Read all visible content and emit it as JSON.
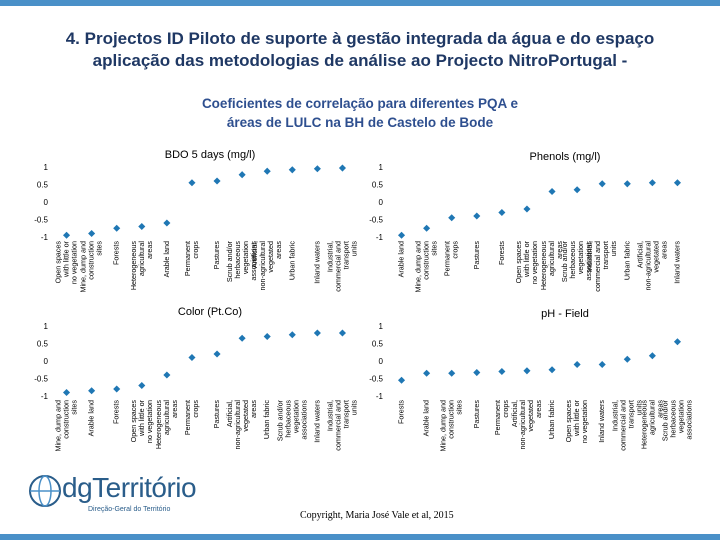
{
  "header": {
    "title_line1": "4. Projectos ID Piloto de suporte à gestão integrada da água e do espaço",
    "title_line2": "aplicação das metodologias  de análise ao Projecto NitroPortugal -",
    "subtitle_line1": "Coeficientes de correlação para diferentes PQA  e",
    "subtitle_line2": "áreas de  LULC na BH de Castelo de Bode"
  },
  "footer": {
    "copyright": "Copyright, Maria José Vale et al, 2015",
    "logo_text": "dgTerritório",
    "logo_sub": "Direção-Geral do Território"
  },
  "colors": {
    "marker": "#1f77b4",
    "title": "#1f3864",
    "subtitle": "#2e4f8f",
    "band": "#4a90c8"
  },
  "chart_data": [
    {
      "type": "scatter",
      "title": "BDO 5 days (mg/l)",
      "ylim": [
        -1,
        1
      ],
      "yticks": [
        "1",
        "0.5",
        "0",
        "-0.5",
        "-1"
      ],
      "categories": [
        "Open spaces with little or no vegetation",
        "Mine, dump and construction sites",
        "Forests",
        "Heterogeneous agricultural areas",
        "Arable land",
        "Permanent crops",
        "Pastures",
        "Scrub and/or herbaceous vegetation associations",
        "Artificial, non-agricultural vegetated areas",
        "Urban fabric",
        "Inland waters",
        "Industrial, commercial and transport units"
      ],
      "values": [
        -0.95,
        -0.9,
        -0.75,
        -0.7,
        -0.6,
        0.55,
        0.6,
        0.78,
        0.88,
        0.92,
        0.95,
        0.97
      ]
    },
    {
      "type": "scatter",
      "title": "Phenols (mg/l)",
      "ylim": [
        -1,
        1
      ],
      "yticks": [
        "1",
        "0.5",
        "0",
        "-0.5",
        "-1"
      ],
      "categories": [
        "Arable land",
        "Mine, dump and construction sites",
        "Permanent crops",
        "Pastures",
        "Forests",
        "Open spaces with little or no vegetation",
        "Heterogeneous agricultural areas",
        "Scrub and/or herbaceous vegetation associations",
        "Industrial, commercial and transport units",
        "Urban fabric",
        "Artificial, non-agricultural vegetated areas",
        "Inland waters"
      ],
      "values": [
        -0.95,
        -0.75,
        -0.45,
        -0.4,
        -0.3,
        -0.2,
        0.3,
        0.35,
        0.52,
        0.52,
        0.55,
        0.55
      ]
    },
    {
      "type": "scatter",
      "title": "Color (Pt.Co)",
      "ylim": [
        -1,
        1
      ],
      "yticks": [
        "1",
        "0.5",
        "0",
        "-0.5",
        "-1"
      ],
      "categories": [
        "Mine, dump and construction sites",
        "Arable land",
        "Forests",
        "Open spaces with little or no vegetation",
        "Heterogeneous agricultural areas",
        "Permanent crops",
        "Pastures",
        "Artificial, non-agricultural vegetated areas",
        "Urban fabric",
        "Scrub and/or herbaceous vegetation associations",
        "Inland waters",
        "Industrial, commercial and transport units"
      ],
      "values": [
        -0.9,
        -0.85,
        -0.8,
        -0.7,
        -0.4,
        0.1,
        0.2,
        0.65,
        0.7,
        0.75,
        0.8,
        0.8
      ]
    },
    {
      "type": "scatter",
      "title": "pH - Field",
      "ylim": [
        -1,
        1
      ],
      "yticks": [
        "1",
        "0.5",
        "0",
        "-0.5",
        "-1"
      ],
      "categories": [
        "Forests",
        "Arable land",
        "Mine, dump and construction sites",
        "Pastures",
        "Permanent crops",
        "Artificial, non-agricultural vegetated areas",
        "Urban fabric",
        "Open spaces with little or no vegetation",
        "Inland waters",
        "Industrial, commercial and transport units",
        "Heterogeneous agricultural areas",
        "Scrub and/or herbaceous vegetation associations"
      ],
      "values": [
        -0.55,
        -0.35,
        -0.35,
        -0.33,
        -0.3,
        -0.28,
        -0.25,
        -0.1,
        -0.1,
        0.05,
        0.15,
        0.55
      ]
    }
  ]
}
